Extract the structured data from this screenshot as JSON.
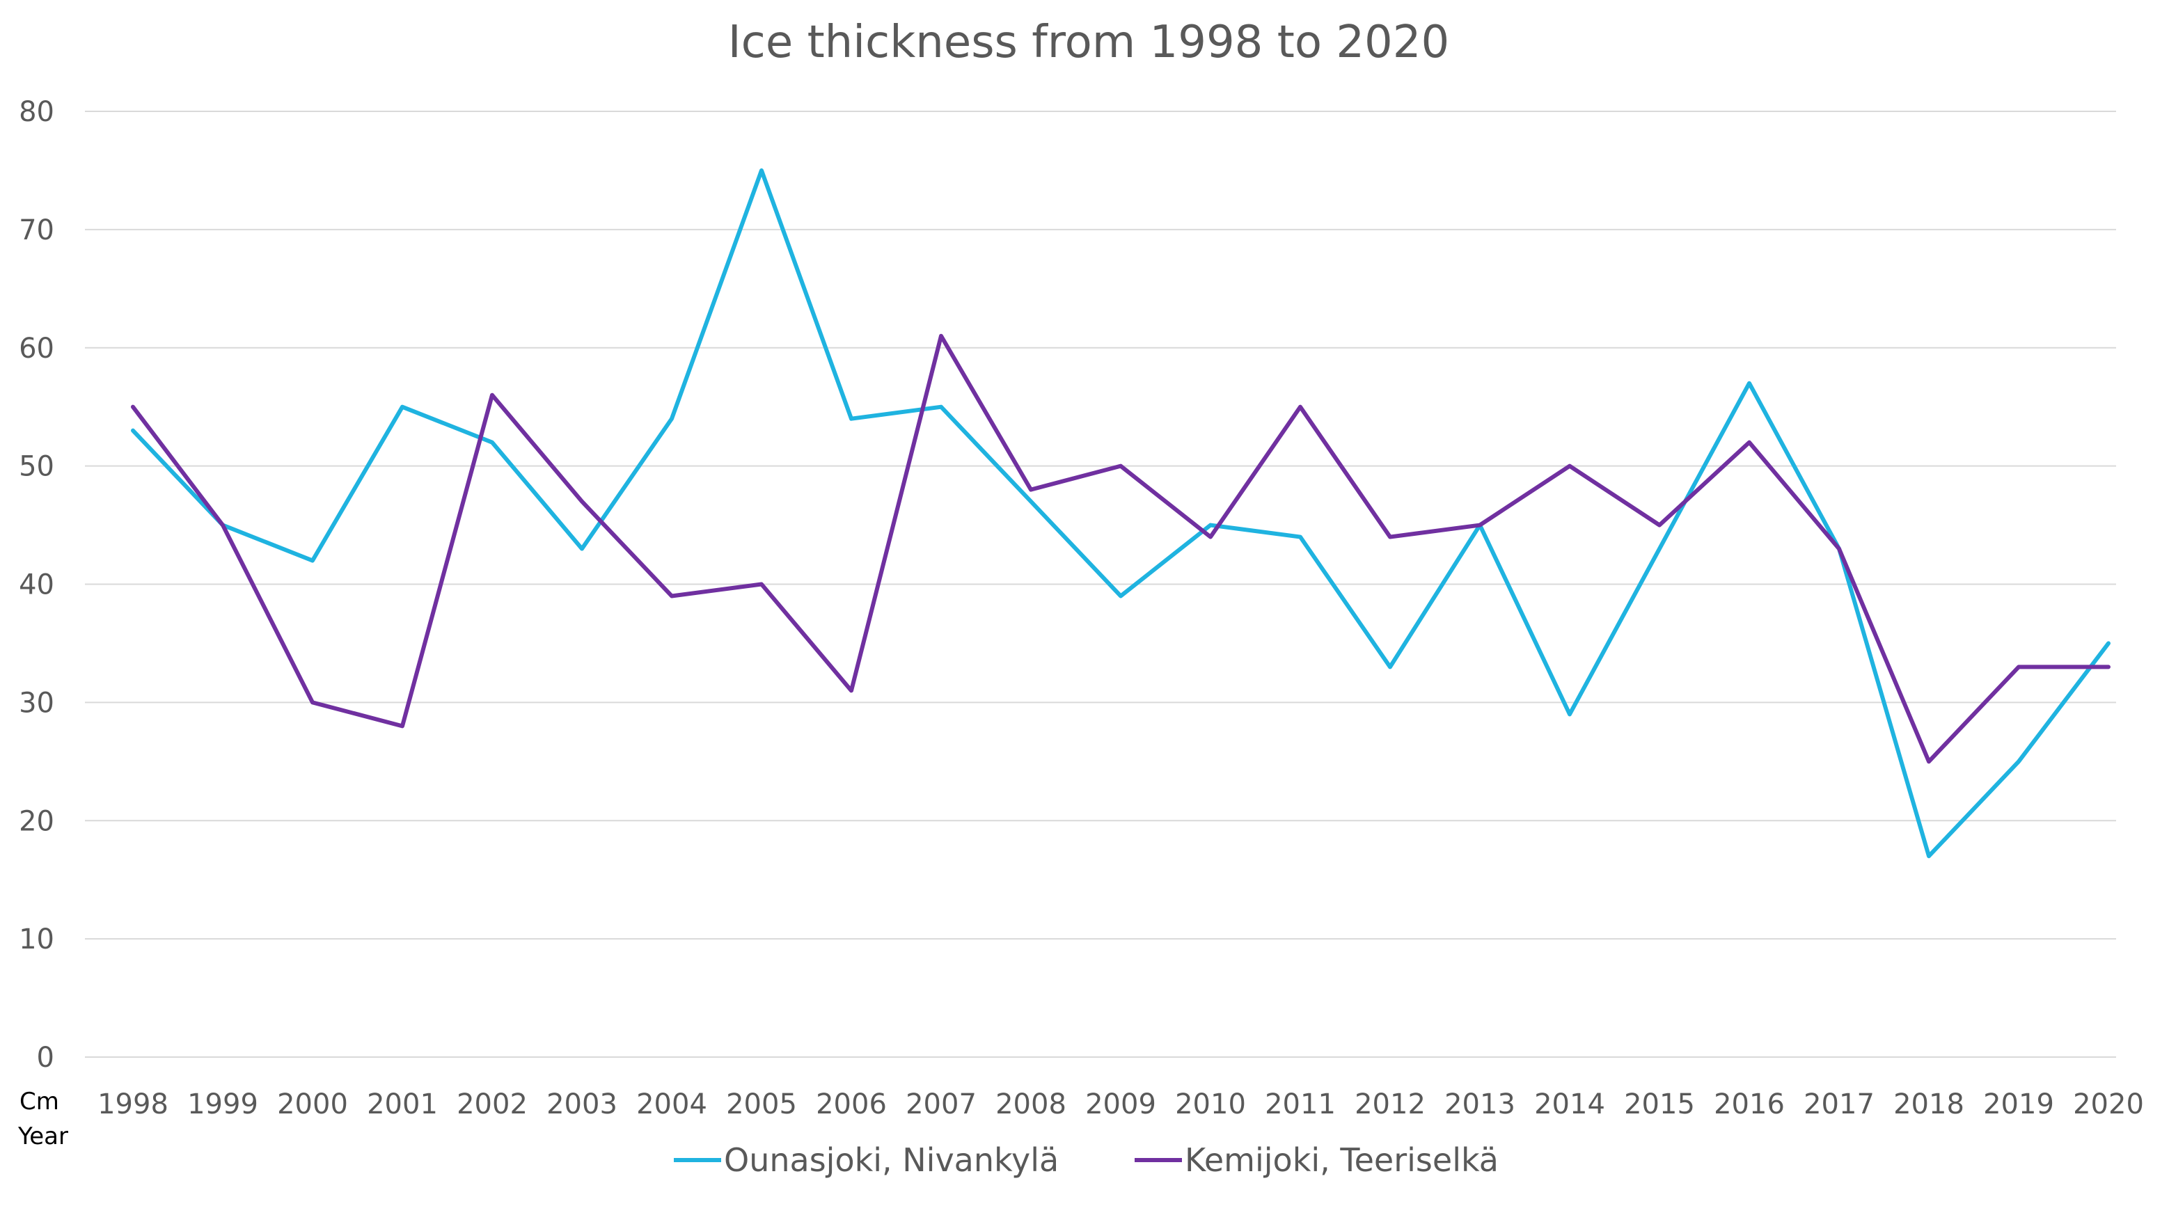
{
  "chart_data": {
    "type": "line",
    "title": "Ice thickness from 1998 to 2020",
    "ylabel": "Cm",
    "xlabel": "Year",
    "ylim": [
      0,
      80
    ],
    "yticks": [
      0,
      10,
      20,
      30,
      40,
      50,
      60,
      70,
      80
    ],
    "grid": true,
    "legend_position": "bottom",
    "categories": [
      "1998",
      "1999",
      "2000",
      "2001",
      "2002",
      "2003",
      "2004",
      "2005",
      "2006",
      "2007",
      "2008",
      "2009",
      "2010",
      "2011",
      "2012",
      "2013",
      "2014",
      "2015",
      "2016",
      "2017",
      "2018",
      "2019",
      "2020"
    ],
    "series": [
      {
        "name": "Ounasjoki, Nivankylä",
        "color": "#1fb3e0",
        "values": [
          53,
          45,
          42,
          55,
          52,
          43,
          54,
          75,
          54,
          55,
          47,
          39,
          45,
          44,
          33,
          45,
          29,
          43,
          57,
          43,
          17,
          25,
          35
        ]
      },
      {
        "name": "Kemijoki, Teeriselkä",
        "color": "#7030a0",
        "values": [
          55,
          45,
          30,
          28,
          56,
          47,
          39,
          40,
          31,
          61,
          48,
          50,
          44,
          55,
          44,
          45,
          50,
          45,
          52,
          43,
          25,
          33,
          33
        ]
      }
    ]
  }
}
